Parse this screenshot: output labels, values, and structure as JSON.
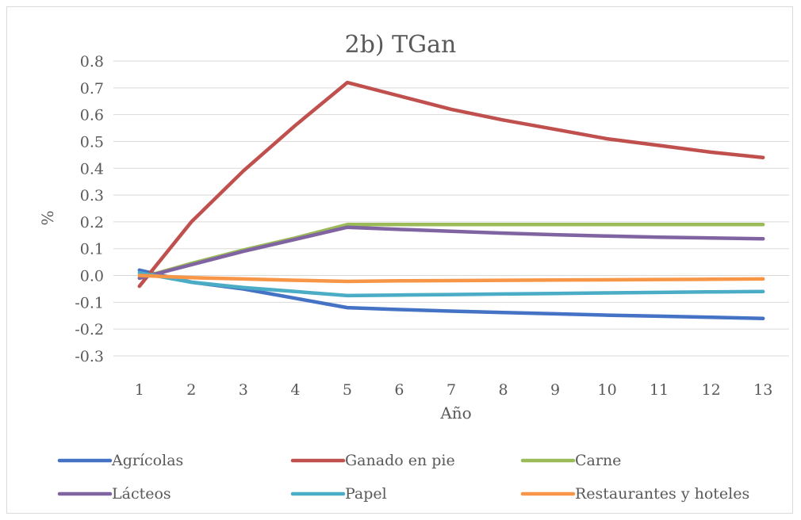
{
  "chart_data": {
    "type": "line",
    "title": "2b) TGan",
    "xlabel": "Año",
    "ylabel": "%",
    "categories": [
      "1",
      "2",
      "3",
      "4",
      "5",
      "6",
      "7",
      "8",
      "9",
      "10",
      "11",
      "12",
      "13"
    ],
    "ylim": [
      -0.3,
      0.8
    ],
    "yticks": [
      "0.8",
      "0.7",
      "0.6",
      "0.5",
      "0.4",
      "0.3",
      "0.2",
      "0.1",
      "0.0",
      "-0.1",
      "-0.2",
      "-0.3"
    ],
    "grid": true,
    "legend_position": "bottom",
    "series": [
      {
        "name": "Agrícolas",
        "color": "#4472c4",
        "values": [
          0.02,
          -0.025,
          -0.05,
          -0.085,
          -0.12,
          -0.127,
          -0.133,
          -0.138,
          -0.143,
          -0.148,
          -0.152,
          -0.156,
          -0.16
        ]
      },
      {
        "name": "Ganado en pie",
        "color": "#c0504d",
        "values": [
          -0.04,
          0.2,
          0.39,
          0.56,
          0.72,
          0.67,
          0.62,
          0.58,
          0.545,
          0.51,
          0.485,
          0.46,
          0.44
        ]
      },
      {
        "name": "Carne",
        "color": "#9bbb59",
        "values": [
          -0.01,
          0.045,
          0.095,
          0.14,
          0.19,
          0.19,
          0.19,
          0.19,
          0.19,
          0.19,
          0.19,
          0.19,
          0.19
        ]
      },
      {
        "name": "Lácteos",
        "color": "#8064a2",
        "values": [
          -0.01,
          0.04,
          0.09,
          0.135,
          0.18,
          0.172,
          0.165,
          0.158,
          0.152,
          0.147,
          0.143,
          0.14,
          0.137
        ]
      },
      {
        "name": "Papel",
        "color": "#4bacc6",
        "values": [
          0.01,
          -0.025,
          -0.045,
          -0.06,
          -0.075,
          -0.073,
          -0.071,
          -0.069,
          -0.067,
          -0.065,
          -0.063,
          -0.061,
          -0.06
        ]
      },
      {
        "name": "Restaurantes y hoteles",
        "color": "#f79646",
        "values": [
          0.0,
          -0.008,
          -0.013,
          -0.018,
          -0.022,
          -0.02,
          -0.019,
          -0.018,
          -0.017,
          -0.016,
          -0.015,
          -0.014,
          -0.013
        ]
      }
    ]
  }
}
